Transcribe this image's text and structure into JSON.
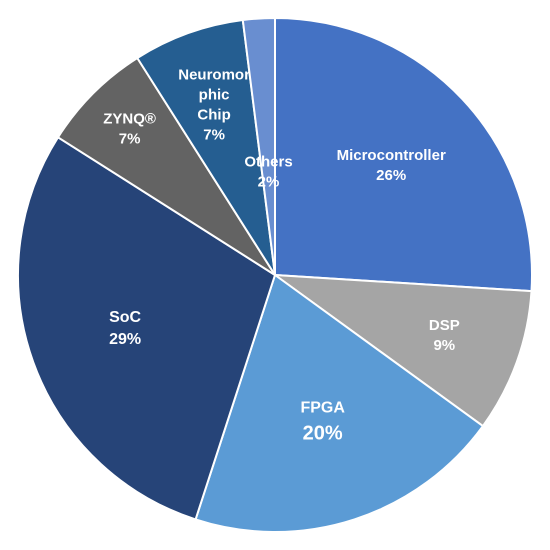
{
  "chart_data": {
    "type": "pie",
    "title": "",
    "start_angle_deg": 0,
    "direction": "clockwise",
    "slices": [
      {
        "label": "Microcontroller",
        "label_lines": [
          "Microcontroller"
        ],
        "value": 26,
        "value_label": "26%",
        "color": "#4472C4"
      },
      {
        "label": "DSP",
        "label_lines": [
          "DSP"
        ],
        "value": 9,
        "value_label": "9%",
        "color": "#A5A5A5"
      },
      {
        "label": "FPGA",
        "label_lines": [
          "FPGA"
        ],
        "value": 20,
        "value_label": "20%",
        "color": "#5B9BD5"
      },
      {
        "label": "SoC",
        "label_lines": [
          "SoC"
        ],
        "value": 29,
        "value_label": "29%",
        "color": "#264478"
      },
      {
        "label": "ZYNQ®",
        "label_lines": [
          "ZYNQ®"
        ],
        "value": 7,
        "value_label": "7%",
        "color": "#636363"
      },
      {
        "label": "Neuromorphic Chip",
        "label_lines": [
          "Neuromor",
          "phic",
          "Chip"
        ],
        "value": 7,
        "value_label": "7%",
        "color": "#255E91"
      },
      {
        "label": "Others",
        "label_lines": [
          "Others"
        ],
        "value": 2,
        "value_label": "2%",
        "color": "#698ED0"
      }
    ]
  }
}
